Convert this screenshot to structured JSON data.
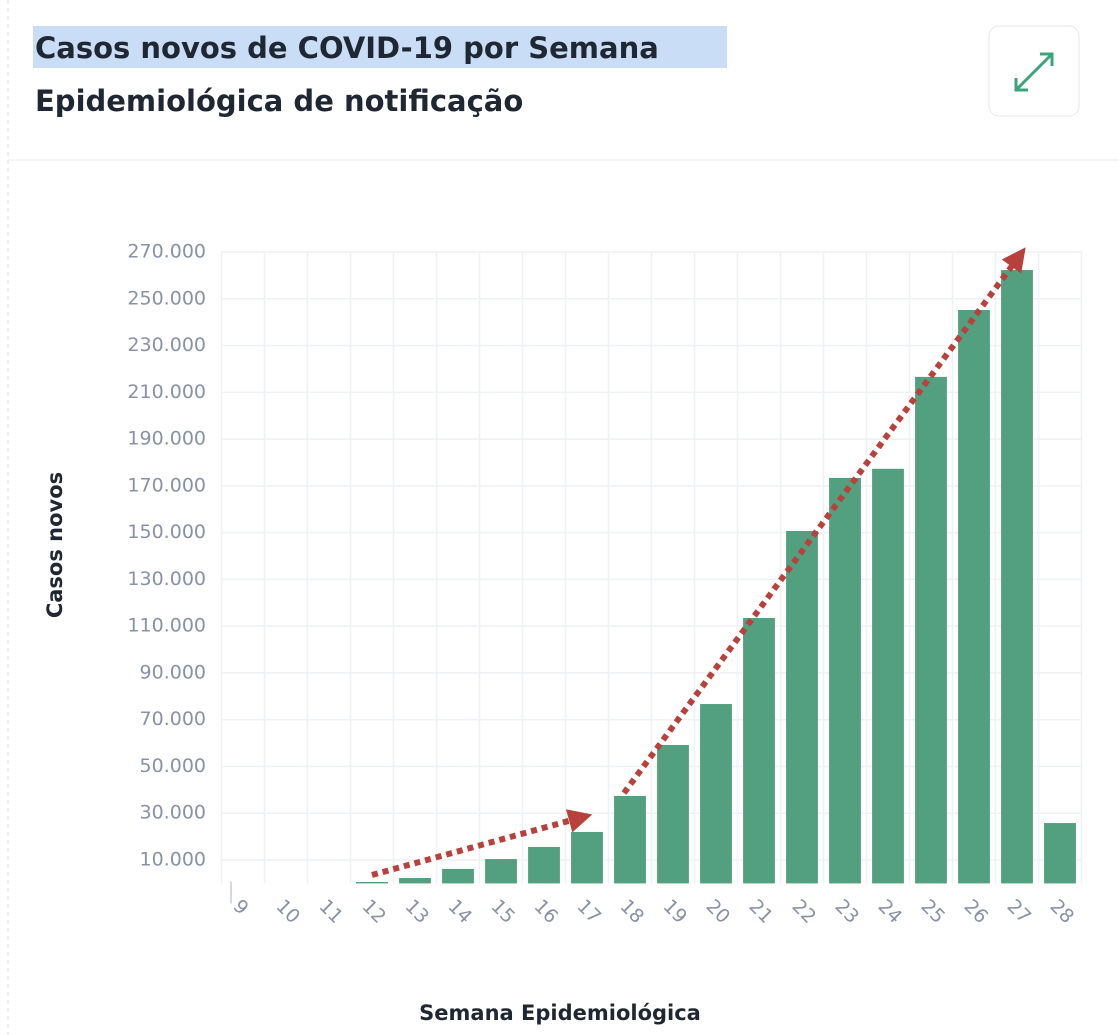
{
  "chart_data": {
    "type": "bar",
    "title_lines": [
      "Casos novos de COVID-19 por Semana",
      "Epidemiológica de notificação"
    ],
    "x_label": "Semana Epidemiológica",
    "y_label": "Casos novos",
    "categories": [
      "9",
      "10",
      "11",
      "12",
      "13",
      "14",
      "15",
      "16",
      "17",
      "18",
      "19",
      "20",
      "21",
      "22",
      "23",
      "24",
      "25",
      "26",
      "27",
      "28"
    ],
    "values": [
      0,
      0,
      0,
      600,
      2300,
      6200,
      10400,
      15600,
      22000,
      37400,
      59200,
      76700,
      113500,
      150700,
      173400,
      177300,
      216600,
      245200,
      262300,
      25800
    ],
    "color": "#52a07f",
    "ylim": [
      0,
      270000
    ],
    "yticks": [
      {
        "value": 10000,
        "label": "10.000"
      },
      {
        "value": 30000,
        "label": "30.000"
      },
      {
        "value": 50000,
        "label": "50.000"
      },
      {
        "value": 70000,
        "label": "70.000"
      },
      {
        "value": 90000,
        "label": "90.000"
      },
      {
        "value": 110000,
        "label": "110.000"
      },
      {
        "value": 130000,
        "label": "130.000"
      },
      {
        "value": 150000,
        "label": "150.000"
      },
      {
        "value": 170000,
        "label": "170.000"
      },
      {
        "value": 190000,
        "label": "190.000"
      },
      {
        "value": 210000,
        "label": "210.000"
      },
      {
        "value": 230000,
        "label": "230.000"
      },
      {
        "value": 250000,
        "label": "250.000"
      },
      {
        "value": 270000,
        "label": "270.000"
      }
    ],
    "grid": true
  }
}
